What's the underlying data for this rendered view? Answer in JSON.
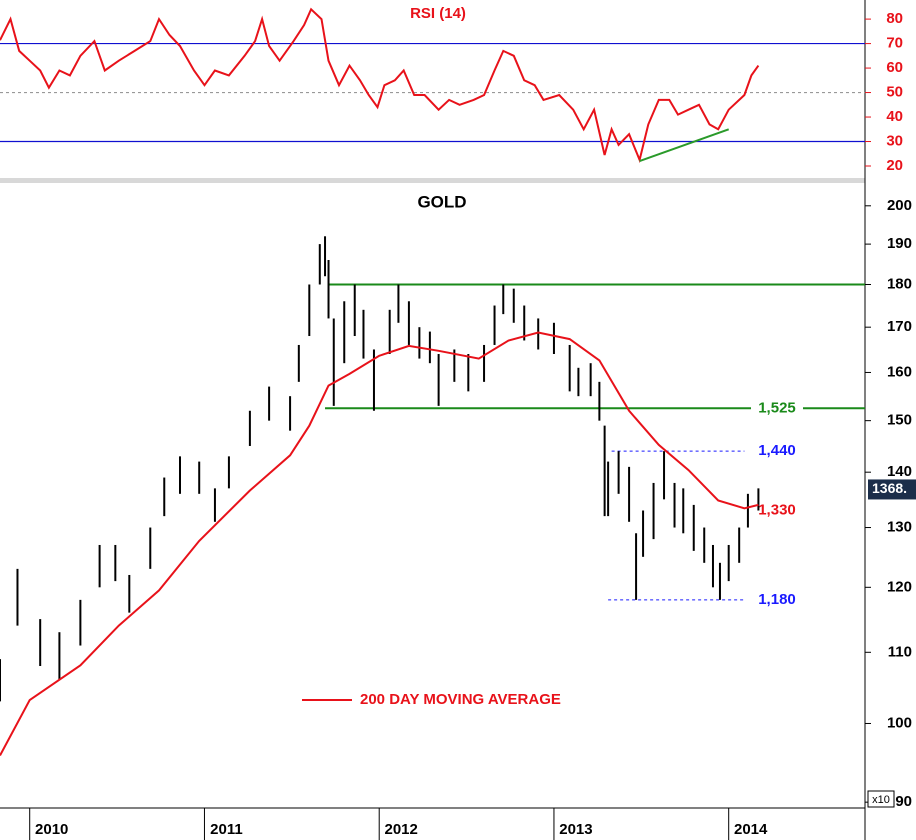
{
  "chart_data": [
    {
      "type": "line",
      "title": "RSI (14)",
      "color": "#e8121a",
      "xlim": [
        2009.83,
        2014.78
      ],
      "ylim": [
        15.1,
        87.8
      ],
      "yticks": [
        20,
        30,
        40,
        50,
        60,
        70,
        80
      ],
      "tick_color": "#e8121a",
      "x": [
        2009.83,
        2009.89,
        2009.94,
        2010.0,
        2010.06,
        2010.11,
        2010.17,
        2010.23,
        2010.29,
        2010.37,
        2010.43,
        2010.51,
        2010.6,
        2010.69,
        2010.74,
        2010.8,
        2010.86,
        2010.94,
        2011.0,
        2011.06,
        2011.14,
        2011.23,
        2011.29,
        2011.33,
        2011.37,
        2011.43,
        2011.51,
        2011.57,
        2011.61,
        2011.67,
        2011.71,
        2011.77,
        2011.83,
        2011.89,
        2011.94,
        2011.99,
        2012.03,
        2012.09,
        2012.14,
        2012.2,
        2012.26,
        2012.34,
        2012.4,
        2012.46,
        2012.54,
        2012.6,
        2012.66,
        2012.71,
        2012.77,
        2012.83,
        2012.89,
        2012.94,
        2013.03,
        2013.11,
        2013.17,
        2013.23,
        2013.29,
        2013.33,
        2013.37,
        2013.43,
        2013.49,
        2013.54,
        2013.6,
        2013.66,
        2013.71,
        2013.77,
        2013.83,
        2013.89,
        2013.94,
        2014.0,
        2014.09,
        2014.13,
        2014.17
      ],
      "values": [
        71.4,
        80,
        67,
        63,
        59,
        52,
        59,
        57,
        65,
        71,
        59,
        63,
        67,
        71,
        80,
        73.5,
        69,
        59,
        53,
        59,
        57,
        65,
        71,
        80,
        69,
        63,
        71,
        77.6,
        84,
        80,
        63,
        53,
        61,
        55,
        49,
        44,
        53,
        55,
        59,
        49,
        49,
        43,
        47,
        45,
        47,
        49,
        59,
        67,
        65,
        55,
        53,
        47,
        49,
        43,
        35,
        43,
        24.5,
        35,
        28.6,
        33,
        22.5,
        37,
        47,
        47,
        41,
        43,
        45,
        37,
        35,
        43,
        49,
        57,
        61
      ],
      "levels": [
        {
          "value": 70,
          "color": "#1010d0"
        },
        {
          "value": 30,
          "color": "#1010d0"
        },
        {
          "value": 50,
          "color": "#999999",
          "dashed": true
        }
      ],
      "trendline": {
        "x": [
          2013.49,
          2014.0
        ],
        "values": [
          22,
          35
        ],
        "color": "#2a9a2a"
      }
    },
    {
      "type": "hilo",
      "title": "GOLD",
      "color": "#000000",
      "log": true,
      "y_unit": "x10",
      "xlim": [
        2009.83,
        2014.78
      ],
      "xticks": [
        2010,
        2011,
        2012,
        2013,
        2014
      ],
      "ylim": [
        89.3,
        206.2
      ],
      "yticks": [
        90,
        100,
        110,
        120,
        130,
        140,
        150,
        160,
        170,
        180,
        190,
        200
      ],
      "x": [
        2009.83,
        2009.93,
        2010.06,
        2010.17,
        2010.29,
        2010.4,
        2010.49,
        2010.57,
        2010.69,
        2010.77,
        2010.86,
        2010.97,
        2011.06,
        2011.14,
        2011.26,
        2011.37,
        2011.49,
        2011.54,
        2011.6,
        2011.66,
        2011.69,
        2011.71,
        2011.74,
        2011.8,
        2011.86,
        2011.91,
        2011.97,
        2012.06,
        2012.11,
        2012.17,
        2012.23,
        2012.29,
        2012.34,
        2012.43,
        2012.51,
        2012.6,
        2012.66,
        2012.71,
        2012.77,
        2012.83,
        2012.91,
        2013.0,
        2013.09,
        2013.14,
        2013.21,
        2013.26,
        2013.29,
        2013.31,
        2013.37,
        2013.43,
        2013.47,
        2013.51,
        2013.57,
        2013.63,
        2013.69,
        2013.74,
        2013.8,
        2013.86,
        2013.91,
        2013.95,
        2014.0,
        2014.06,
        2014.11,
        2014.17
      ],
      "low": [
        103,
        114,
        108,
        106,
        111,
        120,
        121,
        116,
        123,
        132,
        136,
        136,
        131,
        137,
        145,
        150,
        148,
        158,
        168,
        180,
        182,
        172,
        153,
        162,
        168,
        163,
        152,
        164,
        171,
        166,
        163,
        162,
        153,
        158,
        156,
        158,
        166,
        173,
        171,
        167,
        165,
        164,
        156,
        155,
        155,
        150,
        132,
        132,
        136,
        131,
        118,
        125,
        128,
        135,
        130,
        129,
        126,
        124,
        120,
        118,
        121,
        124,
        130,
        133
      ],
      "high": [
        109,
        123,
        115,
        113,
        118,
        127,
        127,
        122,
        130,
        139,
        143,
        142,
        137,
        143,
        152,
        157,
        155,
        166,
        180,
        190,
        192,
        186,
        172,
        176,
        180,
        174,
        165,
        174,
        180,
        176,
        170,
        169,
        164,
        165,
        164,
        166,
        175,
        180,
        179,
        175,
        172,
        171,
        166,
        161,
        162,
        158,
        149,
        142,
        144,
        141,
        129,
        133,
        138,
        144,
        138,
        137,
        134,
        130,
        127,
        124,
        127,
        130,
        136,
        137
      ],
      "moving_average": {
        "name": "200 DAY MOVING AVERAGE",
        "color": "#e8121a",
        "x": [
          2009.83,
          2010.0,
          2010.29,
          2010.51,
          2010.74,
          2010.97,
          2011.26,
          2011.49,
          2011.6,
          2011.71,
          2011.83,
          2012.0,
          2012.17,
          2012.34,
          2012.57,
          2012.74,
          2012.91,
          2013.09,
          2013.26,
          2013.43,
          2013.6,
          2013.77,
          2013.94,
          2014.09,
          2014.17
        ],
        "values": [
          95.8,
          103.2,
          108.1,
          114,
          119.5,
          127.7,
          136.6,
          143.2,
          149,
          157.2,
          159.7,
          163.6,
          165.8,
          164.7,
          163,
          167,
          168.8,
          167.3,
          162.6,
          152,
          145.2,
          140.4,
          134.8,
          133.4,
          134
        ]
      },
      "levels": [
        {
          "value": 180,
          "from": 2011.71,
          "color": "#1a8a1a"
        },
        {
          "value": 152.5,
          "from": 2011.69,
          "label": "1,525",
          "color": "#1a8a1a"
        },
        {
          "value": 144,
          "from": 2013.33,
          "to": 2014.09,
          "label": "1,440",
          "color": "#1a1aff",
          "dashed": true
        },
        {
          "value": 133,
          "label": "1,330",
          "color": "#e8121a"
        },
        {
          "value": 118,
          "from": 2013.31,
          "to": 2014.09,
          "label": "1,180",
          "color": "#1a1aff",
          "dashed": true
        }
      ],
      "last_price": {
        "value": 136.8,
        "label": "1368."
      }
    }
  ]
}
